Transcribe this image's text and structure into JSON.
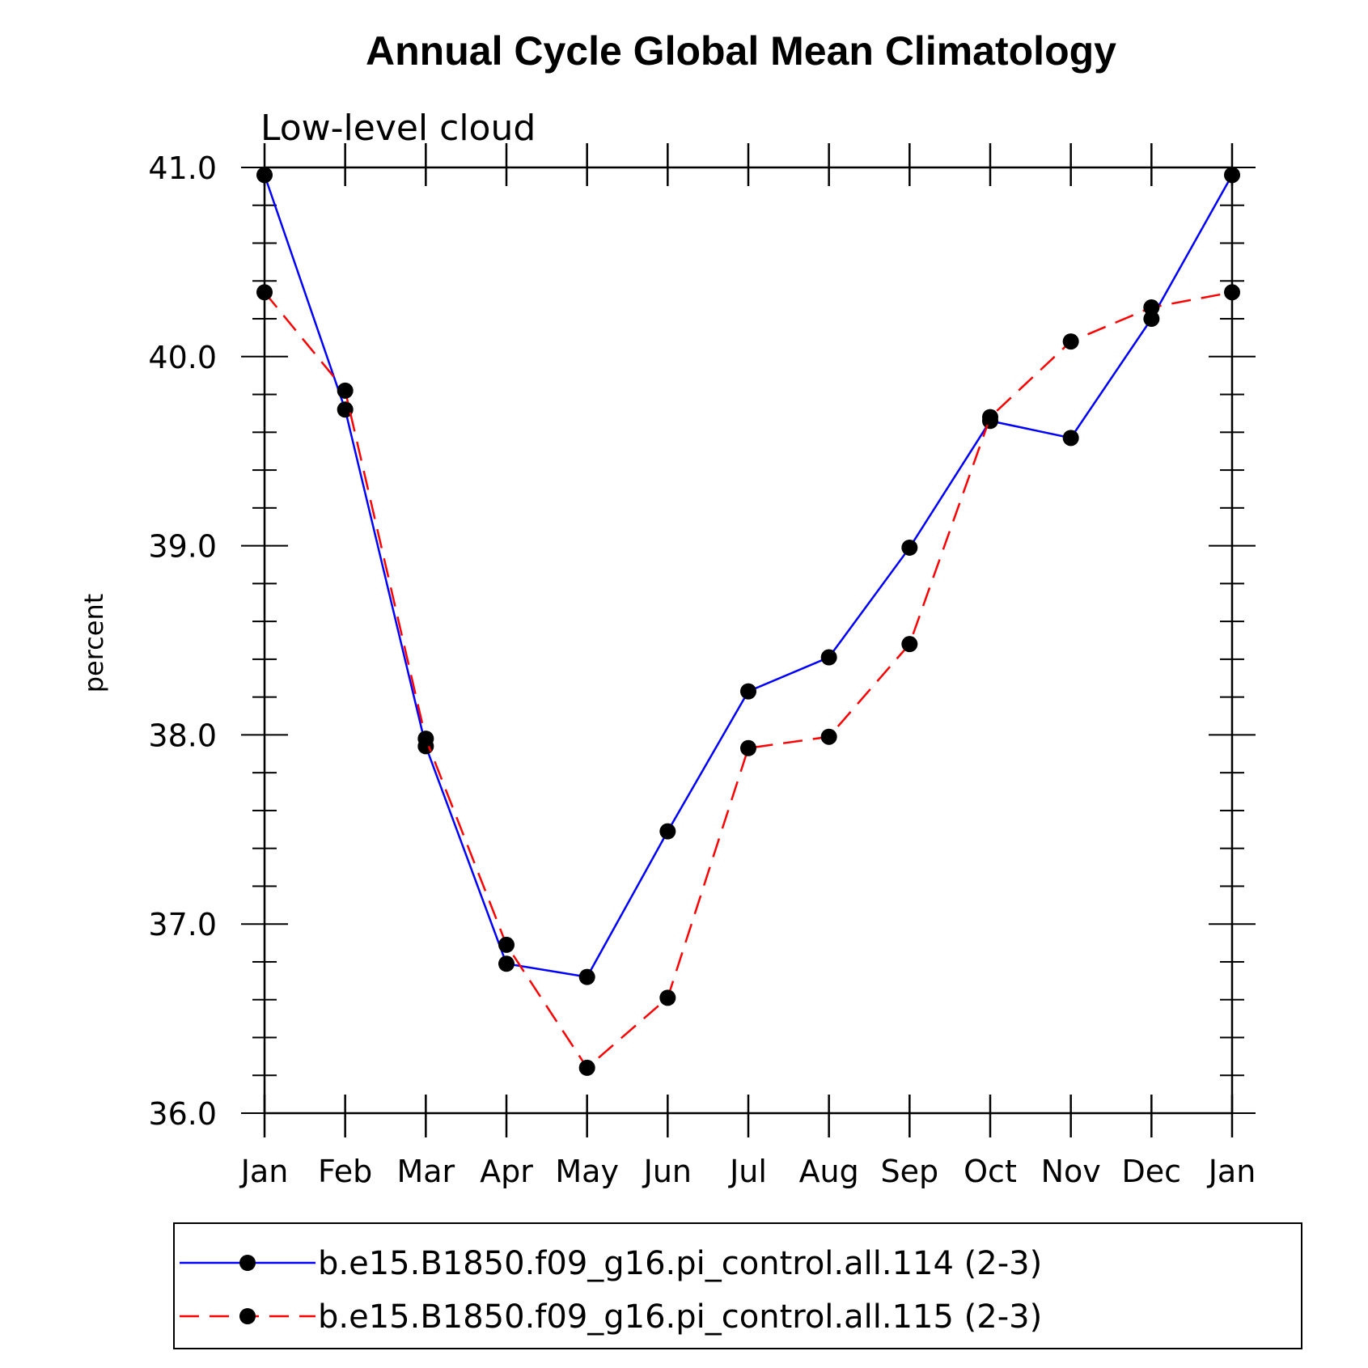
{
  "chart_data": {
    "type": "line",
    "title": "Annual Cycle Global Mean Climatology",
    "subtitle": "Low-level cloud",
    "xlabel": "",
    "ylabel": "percent",
    "ylim": [
      36.0,
      41.0
    ],
    "yticks": [
      "36.0",
      "37.0",
      "38.0",
      "39.0",
      "40.0",
      "41.0"
    ],
    "categories": [
      "Jan",
      "Feb",
      "Mar",
      "Apr",
      "May",
      "Jun",
      "Jul",
      "Aug",
      "Sep",
      "Oct",
      "Nov",
      "Dec",
      "Jan"
    ],
    "grid": false,
    "legend_position": "bottom",
    "series": [
      {
        "name": "b.e15.B1850.f09_g16.pi_control.all.114 (2-3)",
        "color": "#0000ff",
        "dashed": false,
        "values": [
          40.96,
          39.72,
          37.94,
          36.79,
          36.72,
          37.49,
          38.23,
          38.41,
          38.99,
          39.66,
          39.57,
          40.2,
          40.96
        ]
      },
      {
        "name": "b.e15.B1850.f09_g16.pi_control.all.115 (2-3)",
        "color": "#ff0000",
        "dashed": true,
        "values": [
          40.34,
          39.82,
          37.98,
          36.89,
          36.24,
          36.61,
          37.93,
          37.99,
          38.48,
          39.68,
          40.08,
          40.26,
          40.34
        ]
      }
    ]
  }
}
